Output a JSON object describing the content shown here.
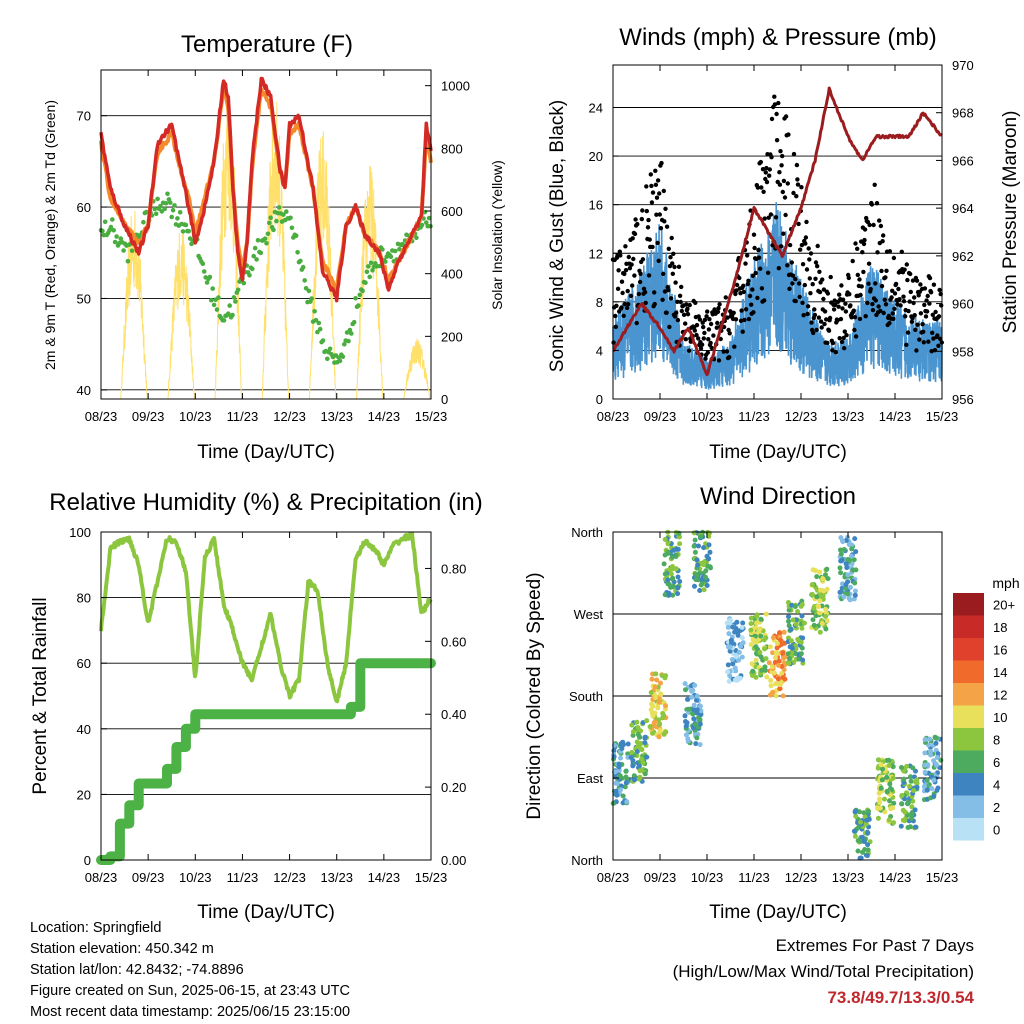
{
  "chart_data": [
    {
      "type": "line",
      "title": "Temperature (F)",
      "xlabel": "Time (Day/UTC)",
      "ylabel": "2m & 9m T (Red, Orange) & 2m Td (Green)",
      "ylabel_right": "Solar Insolation (Yellow)",
      "x_ticks": [
        "08/23",
        "09/23",
        "10/23",
        "11/23",
        "12/23",
        "13/23",
        "14/23",
        "15/23"
      ],
      "ylim": [
        39,
        75
      ],
      "y_ticks": [
        40,
        50,
        60,
        70
      ],
      "ylim_right": [
        0,
        1050
      ],
      "y_ticks_right": [
        0,
        200,
        400,
        600,
        800,
        1000
      ],
      "grid": "horizontal",
      "series": [
        {
          "name": "2m T",
          "color": "#d42a25",
          "x": [
            0,
            0.2,
            0.5,
            0.8,
            1.0,
            1.2,
            1.5,
            1.7,
            1.9,
            2.0,
            2.2,
            2.4,
            2.6,
            2.7,
            2.8,
            2.9,
            3.0,
            3.1,
            3.2,
            3.4,
            3.6,
            3.8,
            3.9,
            4.0,
            4.2,
            4.5,
            4.7,
            5.0,
            5.2,
            5.4,
            5.6,
            5.9,
            6.1,
            6.3,
            6.6,
            6.8,
            6.9,
            7.0
          ],
          "values": [
            68,
            62,
            58,
            55,
            58,
            67,
            69,
            64,
            59,
            56,
            60,
            65,
            74,
            72,
            62,
            55,
            52,
            56,
            65,
            74,
            72,
            64,
            62,
            69,
            70,
            62,
            53,
            50,
            58,
            60,
            57,
            55,
            51,
            54,
            57,
            59,
            69,
            66
          ]
        },
        {
          "name": "9m T",
          "color": "#f58a2c",
          "x": [
            0,
            0.2,
            0.5,
            0.8,
            1.0,
            1.2,
            1.5,
            1.7,
            1.9,
            2.0,
            2.2,
            2.4,
            2.6,
            2.7,
            2.8,
            2.9,
            3.0,
            3.1,
            3.2,
            3.4,
            3.6,
            3.8,
            3.9,
            4.0,
            4.2,
            4.5,
            4.7,
            5.0,
            5.2,
            5.4,
            5.6,
            5.9,
            6.1,
            6.3,
            6.6,
            6.8,
            6.9,
            7.0
          ],
          "values": [
            67,
            61,
            58,
            56,
            58,
            66,
            68,
            64,
            60,
            57,
            61,
            65,
            73,
            71,
            62,
            56,
            53,
            56,
            64,
            73,
            71,
            64,
            62,
            68,
            69,
            62,
            54,
            51,
            58,
            60,
            57,
            55,
            52,
            54,
            57,
            59,
            68,
            65
          ]
        },
        {
          "name": "2m Td",
          "color": "#4aad3f",
          "x": [
            0,
            0.2,
            0.4,
            0.6,
            0.8,
            1.0,
            1.2,
            1.4,
            1.6,
            1.8,
            2.0,
            2.2,
            2.4,
            2.6,
            2.8,
            3.0,
            3.2,
            3.4,
            3.6,
            3.8,
            4.0,
            4.2,
            4.4,
            4.6,
            4.8,
            5.0,
            5.2,
            5.4,
            5.6,
            5.8,
            6.0,
            6.2,
            6.4,
            6.6,
            6.8,
            7.0
          ],
          "values": [
            57,
            58,
            56,
            55,
            57,
            59,
            60,
            61,
            59,
            58,
            56,
            53,
            50,
            48,
            49,
            52,
            54,
            56,
            58,
            59,
            59,
            55,
            50,
            47,
            44,
            43,
            45,
            49,
            52,
            54,
            55,
            55,
            56,
            56,
            58,
            59
          ]
        },
        {
          "name": "Solar Insolation",
          "color": "#ffe06a",
          "axis": "right",
          "x": [
            0,
            0.5,
            1.0,
            1.5,
            2.0,
            2.5,
            3.0,
            3.5,
            4.0,
            4.5,
            5.0,
            5.5,
            6.0,
            6.5,
            7.0
          ],
          "values": [
            0,
            620,
            0,
            560,
            0,
            1000,
            0,
            980,
            0,
            870,
            0,
            760,
            0,
            140,
            0
          ]
        }
      ]
    },
    {
      "type": "line",
      "title": "Winds (mph) & Pressure (mb)",
      "xlabel": "Time (Day/UTC)",
      "ylabel": "Sonic Wind & Gust (Blue, Black)",
      "ylabel_right": "Station Pressure (Maroon)",
      "x_ticks": [
        "08/23",
        "09/23",
        "10/23",
        "11/23",
        "12/23",
        "13/23",
        "14/23",
        "15/23"
      ],
      "ylim": [
        0,
        27.5
      ],
      "y_ticks": [
        0,
        4,
        8,
        12,
        16,
        20,
        24
      ],
      "ylim_right": [
        956,
        970
      ],
      "y_ticks_right": [
        956,
        958,
        960,
        962,
        964,
        966,
        968,
        970
      ],
      "grid": "horizontal",
      "series": [
        {
          "name": "Sonic Wind",
          "color": "#4a95d0",
          "x": [
            0,
            0.5,
            1.0,
            1.5,
            2.0,
            2.5,
            3.0,
            3.5,
            4.0,
            4.5,
            5.0,
            5.5,
            6.0,
            6.5,
            7.0
          ],
          "values": [
            4,
            6,
            9,
            3,
            2,
            3,
            7,
            10,
            6,
            3,
            3,
            7,
            5,
            4,
            4
          ]
        },
        {
          "name": "Gust",
          "color": "#000000",
          "x": [
            0,
            0.5,
            1.0,
            1.5,
            2.0,
            2.5,
            3.0,
            3.5,
            4.0,
            4.5,
            5.0,
            5.5,
            6.0,
            6.5,
            7.0
          ],
          "values": [
            8,
            11,
            14,
            6,
            5,
            6,
            12,
            18,
            13,
            7,
            7,
            13,
            9,
            7,
            7
          ]
        },
        {
          "name": "Station Pressure",
          "color": "#9b1c1f",
          "axis": "right",
          "x": [
            0,
            0.3,
            0.6,
            1.0,
            1.3,
            1.6,
            2.0,
            2.3,
            2.6,
            3.0,
            3.3,
            3.6,
            4.0,
            4.3,
            4.6,
            5.0,
            5.3,
            5.6,
            6.0,
            6.3,
            6.6,
            7.0
          ],
          "values": [
            958,
            959,
            960,
            959,
            958,
            959,
            957,
            959,
            961,
            964,
            963,
            962,
            964,
            966,
            969,
            967,
            966,
            967,
            967,
            967,
            968,
            967
          ]
        }
      ]
    },
    {
      "type": "line",
      "title": "Relative Humidity (%) & Precipitation (in)",
      "xlabel": "Time (Day/UTC)",
      "ylabel": "Percent & Total Rainfall",
      "x_ticks": [
        "08/23",
        "09/23",
        "10/23",
        "11/23",
        "12/23",
        "13/23",
        "14/23",
        "15/23"
      ],
      "ylim": [
        0,
        100
      ],
      "y_ticks": [
        0,
        20,
        40,
        60,
        80,
        100
      ],
      "ylim_right": [
        0,
        0.9
      ],
      "y_ticks_right": [
        "0.00",
        "0.20",
        "0.40",
        "0.60",
        "0.80"
      ],
      "grid": "horizontal",
      "series": [
        {
          "name": "Relative Humidity",
          "color": "#8cc63f",
          "x": [
            0,
            0.2,
            0.4,
            0.6,
            0.8,
            1.0,
            1.2,
            1.4,
            1.6,
            1.8,
            2.0,
            2.2,
            2.4,
            2.6,
            2.8,
            3.0,
            3.2,
            3.4,
            3.6,
            3.8,
            4.0,
            4.2,
            4.4,
            4.6,
            4.8,
            5.0,
            5.2,
            5.4,
            5.6,
            5.8,
            6.0,
            6.2,
            6.4,
            6.6,
            6.8,
            7.0
          ],
          "values": [
            70,
            95,
            97,
            98,
            90,
            72,
            85,
            98,
            97,
            88,
            55,
            92,
            98,
            78,
            70,
            60,
            55,
            65,
            75,
            60,
            50,
            55,
            85,
            82,
            60,
            48,
            60,
            92,
            97,
            95,
            90,
            96,
            98,
            99,
            75,
            80
          ]
        },
        {
          "name": "Total Rainfall",
          "color": "#4cb245",
          "axis": "right",
          "x": [
            0,
            0.2,
            0.4,
            0.6,
            0.8,
            1.0,
            1.2,
            1.4,
            1.6,
            1.8,
            2.0,
            2.5,
            3.0,
            3.5,
            4.0,
            4.5,
            5.0,
            5.3,
            5.5,
            5.8,
            6.0,
            6.5,
            7.0
          ],
          "values": [
            0,
            0.01,
            0.1,
            0.15,
            0.21,
            0.21,
            0.21,
            0.25,
            0.31,
            0.36,
            0.4,
            0.4,
            0.4,
            0.4,
            0.4,
            0.4,
            0.4,
            0.42,
            0.54,
            0.54,
            0.54,
            0.54,
            0.54
          ]
        }
      ]
    },
    {
      "type": "scatter",
      "title": "Wind Direction",
      "xlabel": "Time (Day/UTC)",
      "ylabel": "Direction (Colored By Speed)",
      "x_ticks": [
        "08/23",
        "09/23",
        "10/23",
        "11/23",
        "12/23",
        "13/23",
        "14/23",
        "15/23"
      ],
      "y_ticks": [
        "North",
        "East",
        "South",
        "West",
        "North"
      ],
      "ylim": [
        0,
        360
      ],
      "grid": "horizontal",
      "legend_title": "mph",
      "legend_labels": [
        "20+",
        "18",
        "16",
        "14",
        "12",
        "10",
        "8",
        "6",
        "4",
        "2",
        "0"
      ],
      "legend_colors": [
        "#9b1c1f",
        "#c82a27",
        "#e0412c",
        "#f06a2c",
        "#f5a347",
        "#e8e05a",
        "#8cc63f",
        "#4cab5e",
        "#3d84c0",
        "#84bde6",
        "#b9e1f6"
      ],
      "legend_placement": "right",
      "clusters": [
        {
          "x": 0.15,
          "y": 95,
          "speed": 4
        },
        {
          "x": 0.55,
          "y": 120,
          "speed": 6
        },
        {
          "x": 0.95,
          "y": 170,
          "speed": 10
        },
        {
          "x": 1.25,
          "y": 325,
          "speed": 6
        },
        {
          "x": 1.7,
          "y": 160,
          "speed": 4
        },
        {
          "x": 1.9,
          "y": 330,
          "speed": 6
        },
        {
          "x": 2.6,
          "y": 230,
          "speed": 2
        },
        {
          "x": 3.1,
          "y": 235,
          "speed": 8
        },
        {
          "x": 3.5,
          "y": 215,
          "speed": 12
        },
        {
          "x": 3.9,
          "y": 250,
          "speed": 6
        },
        {
          "x": 4.4,
          "y": 285,
          "speed": 8
        },
        {
          "x": 5.0,
          "y": 320,
          "speed": 4
        },
        {
          "x": 5.3,
          "y": 20,
          "speed": 6
        },
        {
          "x": 5.8,
          "y": 75,
          "speed": 8
        },
        {
          "x": 6.3,
          "y": 70,
          "speed": 6
        },
        {
          "x": 6.8,
          "y": 100,
          "speed": 4
        }
      ]
    }
  ],
  "station_info": {
    "location": "Location: Springfield",
    "elevation": "Station elevation: 450.342 m",
    "latlon": "Station lat/lon: 42.8432; -74.8896",
    "created": "Figure created on Sun, 2025-06-15, at 23:43 UTC",
    "timestamp": "Most recent data timestamp: 2025/06/15 23:15:00"
  },
  "extremes": {
    "title": "Extremes For Past 7 Days",
    "subtitle": "(High/Low/Max Wind/Total Precipitation)",
    "values": "73.8/49.7/13.3/0.54",
    "value_color": "#c0282d"
  }
}
